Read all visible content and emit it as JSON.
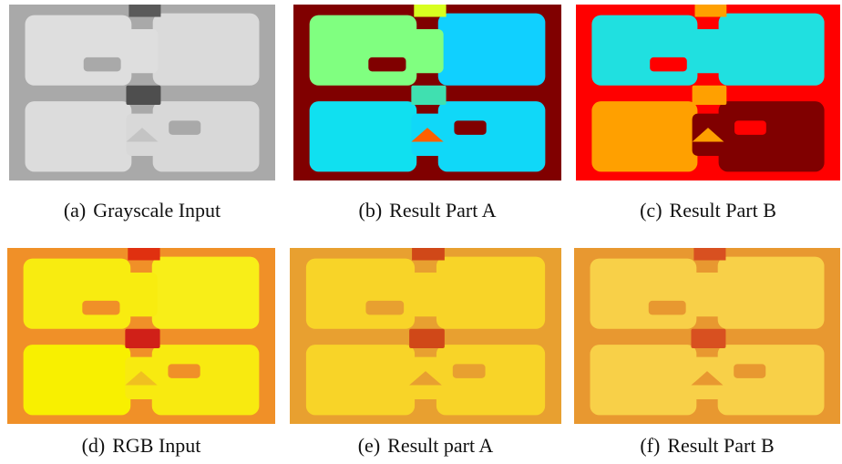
{
  "figure": {
    "panels": [
      {
        "label": "(a)",
        "caption": "Grayscale Input"
      },
      {
        "label": "(b)",
        "caption": "Result Part A"
      },
      {
        "label": "(c)",
        "caption": "Result Part B"
      },
      {
        "label": "(d)",
        "caption": "RGB Input"
      },
      {
        "label": "(e)",
        "caption": "Result part A"
      },
      {
        "label": "(f)",
        "caption": "Result Part B"
      }
    ]
  }
}
